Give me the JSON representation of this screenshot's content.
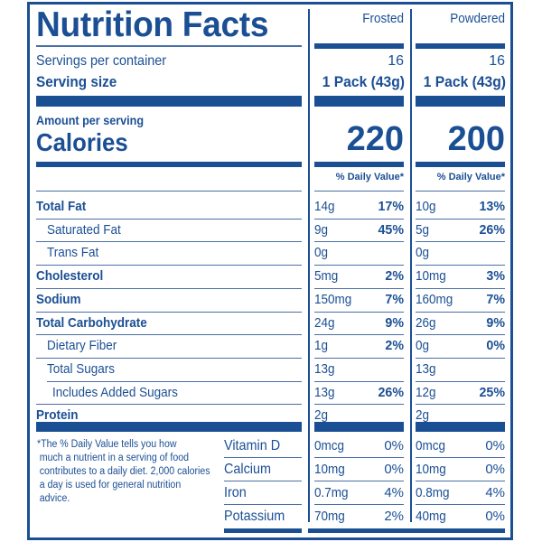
{
  "label": {
    "title": "Nutrition Facts",
    "columns": [
      "Frosted",
      "Powdered"
    ],
    "servings_label": "Servings per container",
    "servings": [
      "16",
      "16"
    ],
    "serving_size_label": "Serving size",
    "serving_size": [
      "1 Pack (43g)",
      "1 Pack (43g)"
    ],
    "amount_per_serving": "Amount per serving",
    "calories_label": "Calories",
    "calories": [
      "220",
      "200"
    ],
    "daily_value_header": "% Daily Value*",
    "nutrients": [
      {
        "name": "Total Fat",
        "bold": true,
        "indent": 0,
        "frosted": {
          "amount": "14g",
          "dv": "17%"
        },
        "powdered": {
          "amount": "10g",
          "dv": "13%"
        }
      },
      {
        "name": "Saturated Fat",
        "bold": false,
        "indent": 1,
        "frosted": {
          "amount": "9g",
          "dv": "45%"
        },
        "powdered": {
          "amount": "5g",
          "dv": "26%"
        }
      },
      {
        "name": "Trans Fat",
        "bold": false,
        "indent": 1,
        "frosted": {
          "amount": "0g",
          "dv": ""
        },
        "powdered": {
          "amount": "0g",
          "dv": ""
        }
      },
      {
        "name": "Cholesterol",
        "bold": true,
        "indent": 0,
        "frosted": {
          "amount": "5mg",
          "dv": "2%"
        },
        "powdered": {
          "amount": "10mg",
          "dv": "3%"
        }
      },
      {
        "name": "Sodium",
        "bold": true,
        "indent": 0,
        "frosted": {
          "amount": "150mg",
          "dv": "7%"
        },
        "powdered": {
          "amount": "160mg",
          "dv": "7%"
        }
      },
      {
        "name": "Total Carbohydrate",
        "bold": true,
        "indent": 0,
        "frosted": {
          "amount": "24g",
          "dv": "9%"
        },
        "powdered": {
          "amount": "26g",
          "dv": "9%"
        }
      },
      {
        "name": "Dietary Fiber",
        "bold": false,
        "indent": 1,
        "frosted": {
          "amount": "1g",
          "dv": "2%"
        },
        "powdered": {
          "amount": "0g",
          "dv": "0%"
        }
      },
      {
        "name": "Total Sugars",
        "bold": false,
        "indent": 1,
        "frosted": {
          "amount": "13g",
          "dv": ""
        },
        "powdered": {
          "amount": "13g",
          "dv": ""
        }
      },
      {
        "name": "Includes Added Sugars",
        "bold": false,
        "indent": 2,
        "frosted": {
          "amount": "13g",
          "dv": "26%"
        },
        "powdered": {
          "amount": "12g",
          "dv": "25%"
        }
      },
      {
        "name": "Protein",
        "bold": true,
        "indent": 0,
        "frosted": {
          "amount": "2g",
          "dv": ""
        },
        "powdered": {
          "amount": "2g",
          "dv": ""
        }
      }
    ],
    "footnote": "*The % Daily Value tells you how much a nutrient in a serving of food contributes to a daily diet. 2,000 calories a day is used for general nutrition advice.",
    "footnote_lines": [
      "*The % Daily Value tells you how",
      " much a nutrient in a serving of food",
      " contributes to a daily diet. 2,000 calories",
      " a day is used for general nutrition advice."
    ],
    "vitamins": [
      {
        "name": "Vitamin D",
        "frosted": {
          "amount": "0mcg",
          "dv": "0%"
        },
        "powdered": {
          "amount": "0mcg",
          "dv": "0%"
        }
      },
      {
        "name": "Calcium",
        "frosted": {
          "amount": "10mg",
          "dv": "0%"
        },
        "powdered": {
          "amount": "10mg",
          "dv": "0%"
        }
      },
      {
        "name": "Iron",
        "frosted": {
          "amount": "0.7mg",
          "dv": "4%"
        },
        "powdered": {
          "amount": "0.8mg",
          "dv": "4%"
        }
      },
      {
        "name": "Potassium",
        "frosted": {
          "amount": "70mg",
          "dv": "2%"
        },
        "powdered": {
          "amount": "40mg",
          "dv": "0%"
        }
      }
    ],
    "colors": {
      "ink": "#1b4f94",
      "background": "#ffffff"
    }
  }
}
